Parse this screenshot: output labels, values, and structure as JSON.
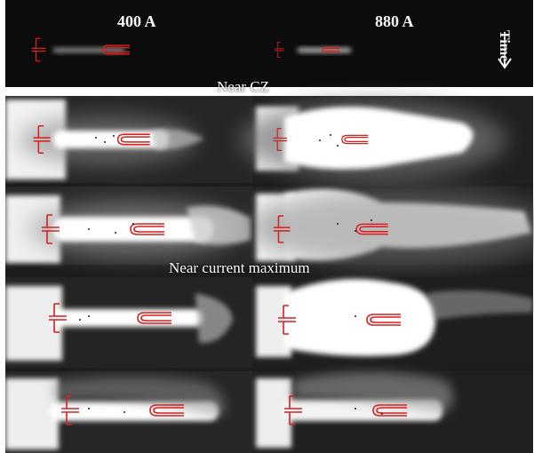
{
  "labels": {
    "col_left": "400 A",
    "col_right": "880 A",
    "time": "Time",
    "near_cz": "Near CZ",
    "near_current_max": "Near current maximum"
  },
  "colors": {
    "electrode_outline": "#d81e1e",
    "background": "#111111",
    "arrow": "#ffffff"
  }
}
